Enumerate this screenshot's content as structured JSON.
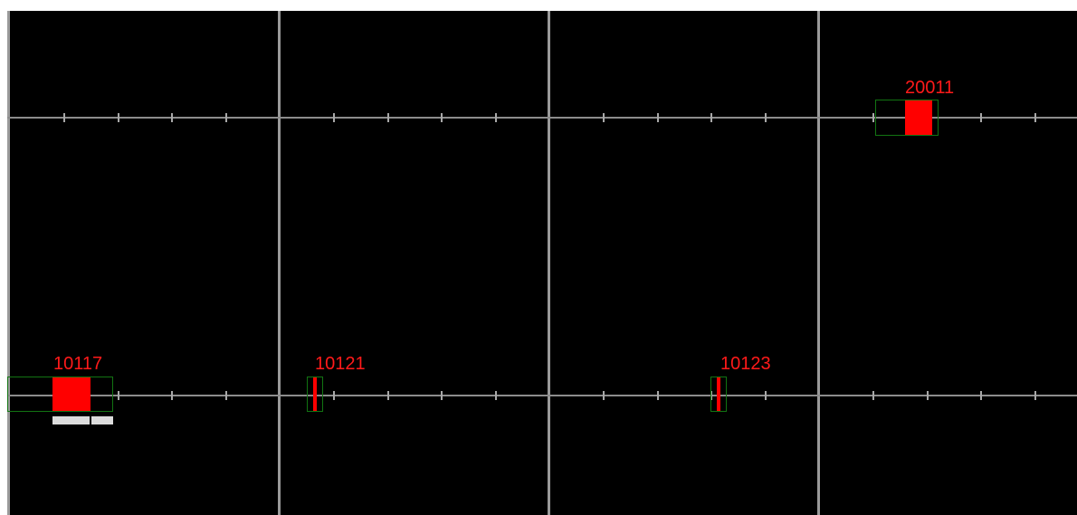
{
  "colors": {
    "background": "#000000",
    "grid_line": "#8c8c8c",
    "outline": "#127412",
    "fill": "#ff0000",
    "label": "#ff1a1a",
    "selection": "#dcdcdc"
  },
  "items": [
    {
      "id": "20011",
      "label": "20011",
      "selected": false
    },
    {
      "id": "10117",
      "label": "10117",
      "selected": true
    },
    {
      "id": "10121",
      "label": "10121",
      "selected": false
    },
    {
      "id": "10123",
      "label": "10123",
      "selected": false
    }
  ]
}
